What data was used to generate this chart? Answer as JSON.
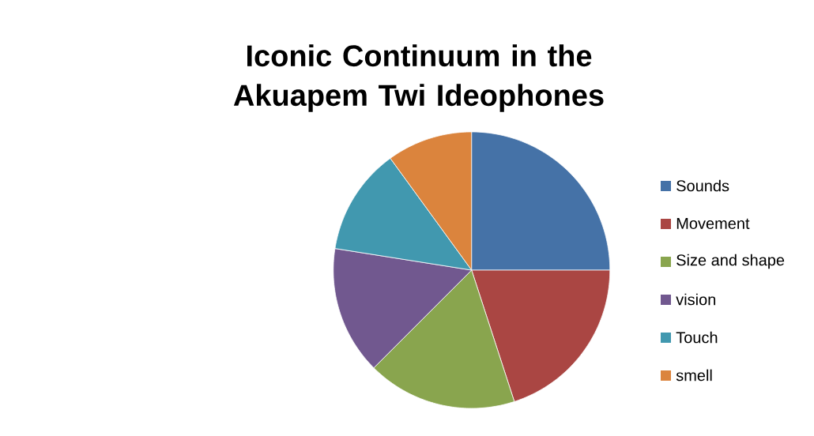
{
  "chart_data": {
    "type": "pie",
    "title": "Iconic Continuum in the Akuapem Twi Ideophones",
    "categories": [
      "Sounds",
      "Movement",
      "Size and shape",
      "vision",
      "Touch",
      "smell"
    ],
    "values": [
      25,
      20,
      17.5,
      15,
      12.5,
      10
    ],
    "colors": [
      "#4572a7",
      "#aa4643",
      "#89a54e",
      "#71588f",
      "#4198af",
      "#db843d"
    ],
    "legend": "right"
  }
}
